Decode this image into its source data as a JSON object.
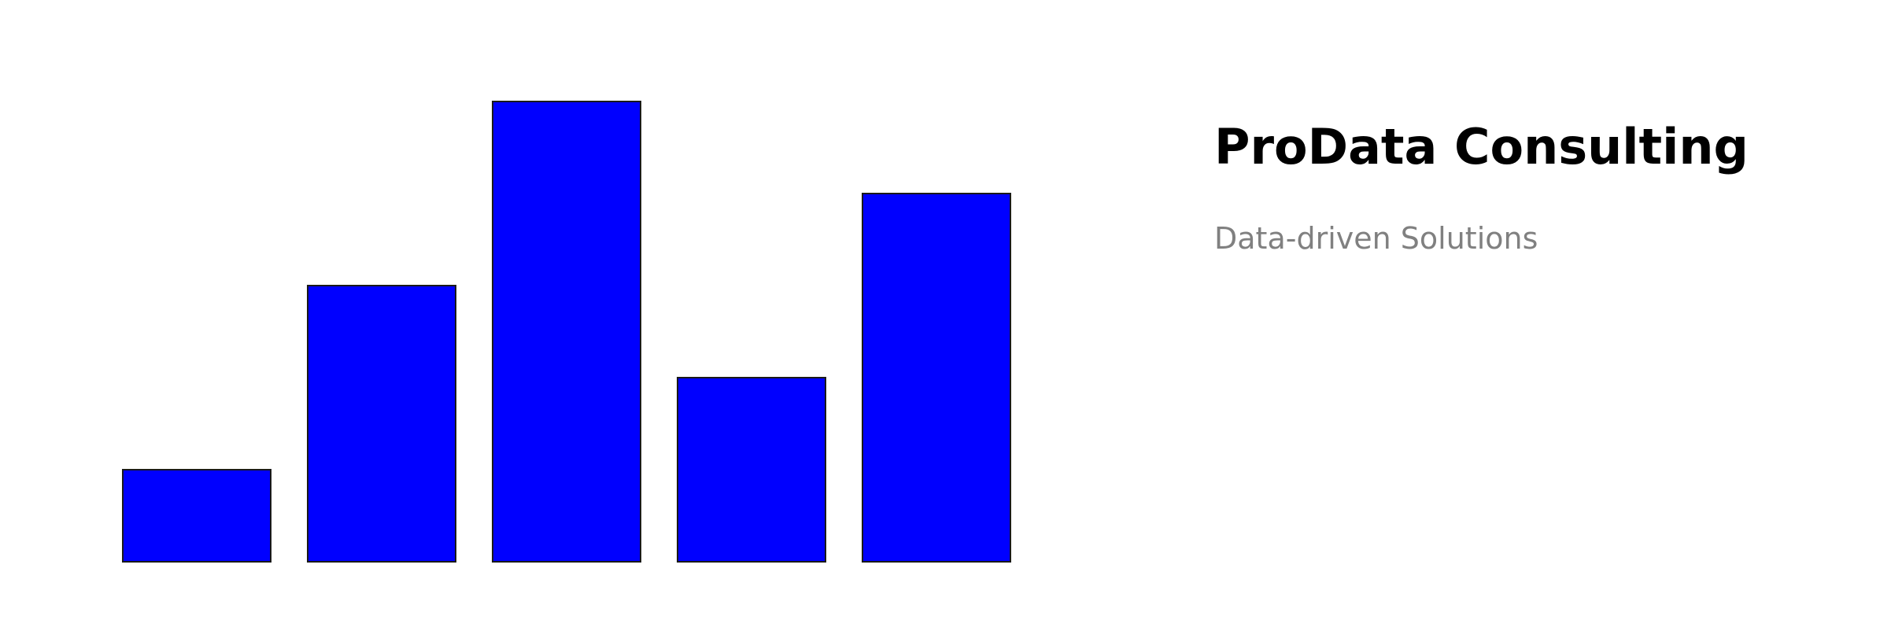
{
  "chart_data": {
    "type": "bar",
    "title": "ProData Consulting",
    "subtitle": "Data-driven Solutions",
    "values": [
      1,
      3,
      5,
      2,
      4
    ],
    "color": "#0000ff",
    "ylim": [
      0,
      5
    ]
  }
}
